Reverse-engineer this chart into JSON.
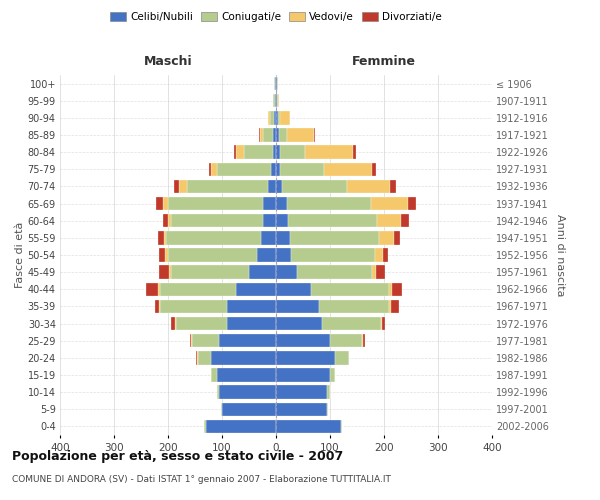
{
  "age_groups": [
    "0-4",
    "5-9",
    "10-14",
    "15-19",
    "20-24",
    "25-29",
    "30-34",
    "35-39",
    "40-44",
    "45-49",
    "50-54",
    "55-59",
    "60-64",
    "65-69",
    "70-74",
    "75-79",
    "80-84",
    "85-89",
    "90-94",
    "95-99",
    "100+"
  ],
  "birth_years": [
    "2002-2006",
    "1997-2001",
    "1992-1996",
    "1987-1991",
    "1982-1986",
    "1977-1981",
    "1972-1976",
    "1967-1971",
    "1962-1966",
    "1957-1961",
    "1952-1956",
    "1947-1951",
    "1942-1946",
    "1937-1941",
    "1932-1936",
    "1927-1931",
    "1922-1926",
    "1917-1921",
    "1912-1916",
    "1907-1911",
    "≤ 1906"
  ],
  "male": {
    "celibi": [
      130,
      100,
      105,
      110,
      120,
      105,
      90,
      90,
      75,
      50,
      35,
      28,
      25,
      25,
      15,
      10,
      5,
      5,
      3,
      2,
      2
    ],
    "coniugati": [
      3,
      2,
      5,
      10,
      25,
      50,
      95,
      125,
      140,
      145,
      165,
      175,
      170,
      175,
      150,
      100,
      55,
      20,
      8,
      3,
      1
    ],
    "vedovi": [
      0,
      0,
      0,
      0,
      1,
      2,
      2,
      2,
      3,
      3,
      5,
      5,
      5,
      10,
      15,
      10,
      15,
      5,
      3,
      0,
      0
    ],
    "divorziati": [
      0,
      0,
      0,
      0,
      2,
      3,
      8,
      8,
      22,
      18,
      12,
      10,
      10,
      12,
      8,
      5,
      3,
      2,
      0,
      0,
      0
    ]
  },
  "female": {
    "nubili": [
      120,
      95,
      95,
      100,
      110,
      100,
      85,
      80,
      65,
      38,
      28,
      25,
      22,
      20,
      12,
      8,
      8,
      5,
      3,
      2,
      2
    ],
    "coniugate": [
      2,
      2,
      5,
      10,
      25,
      60,
      110,
      130,
      145,
      140,
      155,
      165,
      165,
      155,
      120,
      80,
      45,
      15,
      5,
      2,
      1
    ],
    "vedove": [
      0,
      0,
      0,
      0,
      0,
      2,
      2,
      3,
      5,
      8,
      15,
      28,
      45,
      70,
      80,
      90,
      90,
      50,
      18,
      2,
      0
    ],
    "divorziate": [
      0,
      0,
      0,
      0,
      1,
      2,
      5,
      15,
      18,
      15,
      10,
      12,
      15,
      15,
      10,
      8,
      5,
      2,
      0,
      0,
      0
    ]
  },
  "colors": {
    "celibi_nubili": "#4472C4",
    "coniugati": "#B5CC8E",
    "vedovi": "#F5C96B",
    "divorziati": "#C0392B"
  },
  "title": "Popolazione per età, sesso e stato civile - 2007",
  "subtitle": "COMUNE DI ANDORA (SV) - Dati ISTAT 1° gennaio 2007 - Elaborazione TUTTITALIA.IT",
  "xlabel_left": "Maschi",
  "xlabel_right": "Femmine",
  "ylabel_left": "Fasce di età",
  "ylabel_right": "Anni di nascita",
  "xlim": 400,
  "background_color": "#ffffff",
  "grid_color": "#cccccc"
}
